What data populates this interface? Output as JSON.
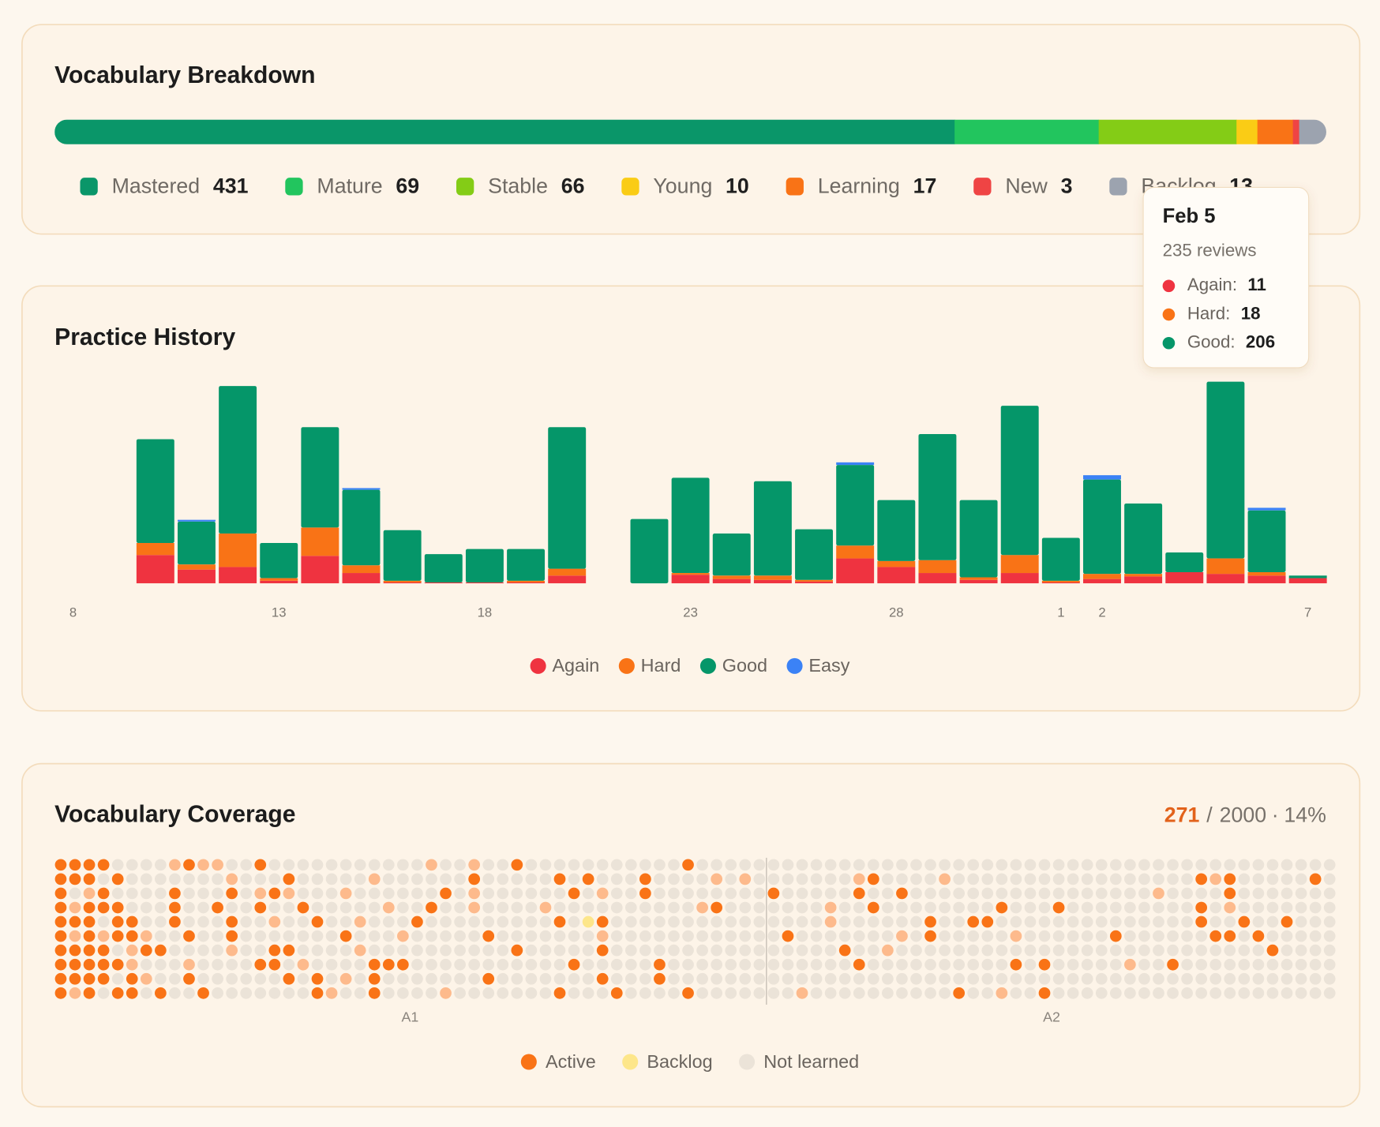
{
  "breakdown": {
    "title": "Vocabulary Breakdown",
    "items": [
      {
        "name": "Mastered",
        "value": 431,
        "color": "#0a9669"
      },
      {
        "name": "Mature",
        "value": 69,
        "color": "#22c55e"
      },
      {
        "name": "Stable",
        "value": 66,
        "color": "#84cc16"
      },
      {
        "name": "Young",
        "value": 10,
        "color": "#facc15"
      },
      {
        "name": "Learning",
        "value": 17,
        "color": "#f97316"
      },
      {
        "name": "New",
        "value": 3,
        "color": "#ef4444"
      },
      {
        "name": "Backlog",
        "value": 13,
        "color": "#9ca3af"
      }
    ]
  },
  "chart_data": {
    "type": "bar",
    "stacked": true,
    "title": "Practice History",
    "categories": [
      "8",
      null,
      null,
      null,
      null,
      "13",
      null,
      null,
      null,
      null,
      "18",
      null,
      null,
      null,
      null,
      "23",
      null,
      null,
      null,
      null,
      "28",
      null,
      null,
      null,
      "1",
      "2",
      null,
      null,
      null,
      null,
      "7"
    ],
    "series": [
      {
        "name": "Again",
        "color": "#ef3340",
        "values": [
          0,
          0,
          33,
          16,
          19,
          3,
          32,
          12,
          1,
          1,
          1,
          1,
          9,
          0,
          0,
          10,
          5,
          4,
          2,
          29,
          19,
          12,
          4,
          12,
          1,
          5,
          8,
          13,
          11,
          9,
          6
        ]
      },
      {
        "name": "Hard",
        "color": "#f97316",
        "values": [
          0,
          0,
          14,
          6,
          39,
          3,
          33,
          9,
          2,
          0,
          0,
          2,
          8,
          0,
          0,
          2,
          4,
          5,
          2,
          15,
          7,
          15,
          3,
          21,
          2,
          6,
          3,
          0,
          18,
          4,
          0
        ]
      },
      {
        "name": "Good",
        "color": "#059669",
        "values": [
          0,
          0,
          121,
          50,
          172,
          41,
          117,
          88,
          59,
          33,
          39,
          37,
          165,
          0,
          75,
          111,
          49,
          110,
          59,
          94,
          71,
          147,
          90,
          174,
          50,
          110,
          82,
          23,
          206,
          72,
          3
        ]
      },
      {
        "name": "Easy",
        "color": "#3b82f6",
        "values": [
          0,
          0,
          0,
          2,
          0,
          0,
          0,
          2,
          0,
          0,
          0,
          0,
          0,
          0,
          0,
          0,
          0,
          0,
          0,
          3,
          0,
          0,
          0,
          0,
          0,
          5,
          0,
          0,
          0,
          3,
          0
        ]
      }
    ],
    "ylim": [
      0,
      240
    ]
  },
  "tooltip": {
    "date": "Feb 5",
    "total": {
      "value": 235,
      "label": "235 reviews"
    },
    "items": [
      {
        "name": "Again:",
        "value": 11,
        "color": "#ef3340"
      },
      {
        "name": "Hard:",
        "value": 18,
        "color": "#f97316"
      },
      {
        "name": "Good:",
        "value": 206,
        "color": "#059669"
      }
    ]
  },
  "coverage": {
    "title": "Vocabulary Coverage",
    "count": 271,
    "slash": "/",
    "total": 2000,
    "dot": "·",
    "percent": {
      "value": 14,
      "label": "14%"
    },
    "active_light_color": "#fdba8c",
    "legend": [
      {
        "name": "Active",
        "color": "#f97316"
      },
      {
        "name": "Backlog",
        "color": "#fde68a"
      },
      {
        "name": "Not learned",
        "color": "#ebe3d8"
      }
    ],
    "levels": [
      {
        "label": "A1",
        "rows": 10,
        "columns": 50,
        "active": [
          [
            0,
            1,
            2,
            3,
            9,
            14,
            32,
            44
          ],
          [
            0,
            1,
            2,
            4,
            16,
            29,
            35,
            37,
            41
          ],
          [
            0,
            3,
            8,
            12,
            15,
            27,
            36,
            41
          ],
          [
            0,
            2,
            3,
            4,
            8,
            11,
            14,
            17,
            26,
            46
          ],
          [
            0,
            1,
            2,
            4,
            5,
            8,
            12,
            18,
            25,
            35,
            38
          ],
          [
            0,
            2,
            4,
            5,
            9,
            12,
            20,
            30
          ],
          [
            0,
            1,
            2,
            3,
            6,
            7,
            15,
            16,
            32,
            38
          ],
          [
            0,
            1,
            2,
            3,
            4,
            14,
            15,
            22,
            23,
            24,
            36,
            42
          ],
          [
            0,
            1,
            2,
            3,
            5,
            9,
            16,
            18,
            22,
            30,
            38,
            42
          ],
          [
            0,
            2,
            4,
            5,
            7,
            10,
            18,
            22,
            35,
            39,
            44
          ]
        ],
        "active_light": [
          [
            8,
            10,
            11,
            26,
            29
          ],
          [
            12,
            22,
            46,
            48
          ],
          [
            2,
            14,
            16,
            20,
            29,
            38
          ],
          [
            1,
            23,
            29,
            34,
            45
          ],
          [
            15,
            21
          ],
          [
            1,
            3,
            6,
            24,
            38
          ],
          [
            5,
            12,
            21
          ],
          [
            5,
            9,
            17
          ],
          [
            6,
            20
          ],
          [
            1,
            19,
            27
          ]
        ],
        "backlog": [
          [],
          [],
          [],
          [],
          [
            37
          ],
          [],
          [],
          [],
          [],
          []
        ]
      },
      {
        "label": "A2",
        "rows": 10,
        "columns": 40,
        "active": [
          [],
          [
            7,
            30,
            32,
            38
          ],
          [
            0,
            6,
            9,
            32
          ],
          [
            7,
            16,
            20,
            30
          ],
          [
            11,
            14,
            15,
            30,
            33,
            36
          ],
          [
            1,
            11,
            24,
            31,
            32,
            34
          ],
          [
            5,
            35
          ],
          [
            6,
            17,
            19,
            28
          ],
          [],
          [
            13,
            19
          ]
        ],
        "active_light": [
          [],
          [
            6,
            12,
            31
          ],
          [
            27
          ],
          [
            4,
            32
          ],
          [
            4
          ],
          [
            9,
            17
          ],
          [
            8
          ],
          [
            25
          ],
          [],
          [
            2,
            16
          ]
        ],
        "backlog": [
          [],
          [],
          [],
          [],
          [],
          [],
          [],
          [],
          [],
          []
        ]
      }
    ]
  }
}
